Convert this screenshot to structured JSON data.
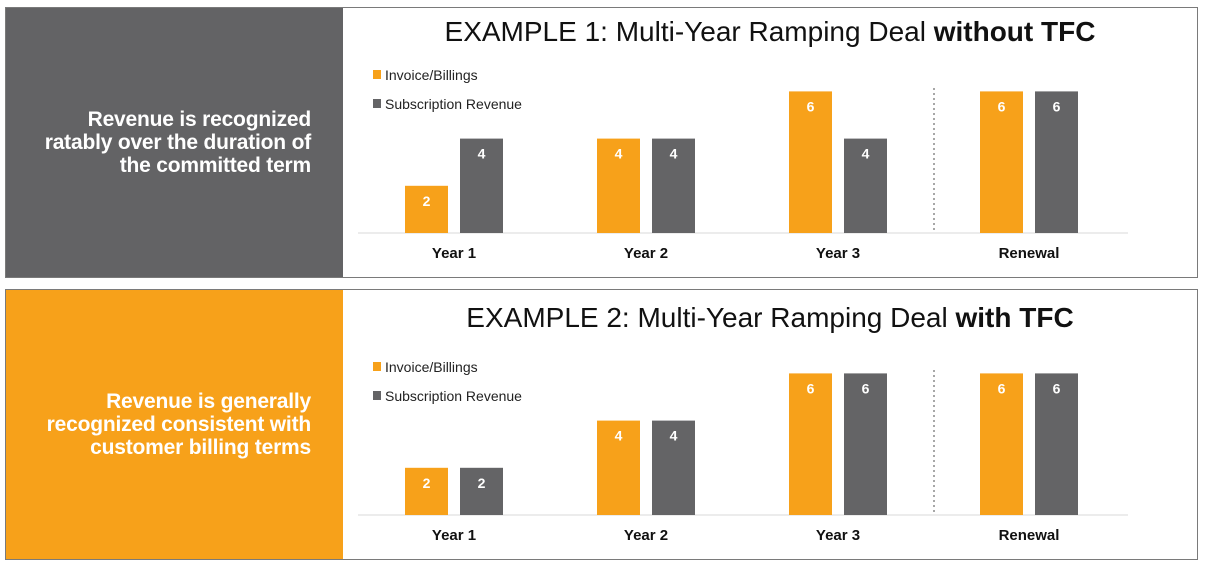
{
  "colors": {
    "invoice": "#f7a11a",
    "subscription": "#646466",
    "dark_panel": "#636365",
    "orange_panel": "#f7a11a",
    "divider": "#8a8a8a"
  },
  "panels": [
    {
      "side_text_lines": [
        "Revenue is recognized",
        "ratably over the duration of",
        "the committed term"
      ],
      "title_plain": "EXAMPLE 1:  Multi-Year Ramping Deal ",
      "title_bold": "without TFC",
      "legend": [
        "Invoice/Billings",
        "Subscription Revenue"
      ]
    },
    {
      "side_text_lines": [
        "Revenue is generally",
        "recognized consistent with",
        "customer billing terms"
      ],
      "title_plain": "EXAMPLE 2:  Multi-Year Ramping Deal ",
      "title_bold": "with TFC",
      "legend": [
        "Invoice/Billings",
        "Subscription Revenue"
      ]
    }
  ],
  "chart_data": [
    {
      "type": "bar",
      "title": "EXAMPLE 1:  Multi-Year Ramping Deal without TFC",
      "categories": [
        "Year 1",
        "Year 2",
        "Year 3",
        "Renewal"
      ],
      "series": [
        {
          "name": "Invoice/Billings",
          "values": [
            2,
            4,
            6,
            6
          ]
        },
        {
          "name": "Subscription Revenue",
          "values": [
            4,
            4,
            4,
            6
          ]
        }
      ],
      "ylim": [
        0,
        6
      ],
      "legend": "top-left",
      "grid": false,
      "separator_before": "Renewal"
    },
    {
      "type": "bar",
      "title": "EXAMPLE 2:  Multi-Year Ramping Deal with TFC",
      "categories": [
        "Year 1",
        "Year 2",
        "Year 3",
        "Renewal"
      ],
      "series": [
        {
          "name": "Invoice/Billings",
          "values": [
            2,
            4,
            6,
            6
          ]
        },
        {
          "name": "Subscription Revenue",
          "values": [
            2,
            4,
            6,
            6
          ]
        }
      ],
      "ylim": [
        0,
        6
      ],
      "legend": "top-left",
      "grid": false,
      "separator_before": "Renewal"
    }
  ]
}
